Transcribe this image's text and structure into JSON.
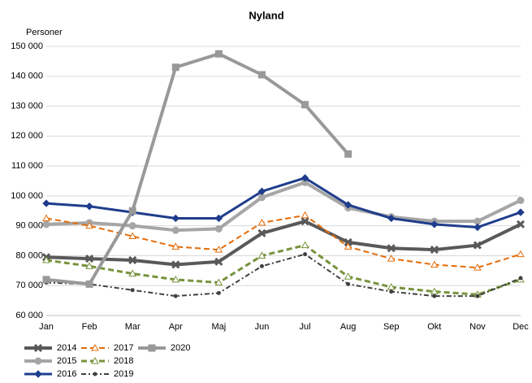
{
  "chart_data": {
    "type": "line",
    "title": "Nyland",
    "y_label": "Personer",
    "categories": [
      "Jan",
      "Feb",
      "Mar",
      "Apr",
      "Maj",
      "Jun",
      "Jul",
      "Aug",
      "Sep",
      "Okt",
      "Nov",
      "Dec"
    ],
    "ylim": [
      60000,
      150000
    ],
    "yticks": [
      {
        "value": 60000,
        "label": "60 000"
      },
      {
        "value": 70000,
        "label": "70 000"
      },
      {
        "value": 80000,
        "label": "80 000"
      },
      {
        "value": 90000,
        "label": "90 000"
      },
      {
        "value": 100000,
        "label": "100 000"
      },
      {
        "value": 110000,
        "label": "110 000"
      },
      {
        "value": 120000,
        "label": "120 000"
      },
      {
        "value": 130000,
        "label": "130 000"
      },
      {
        "value": 140000,
        "label": "140 000"
      },
      {
        "value": 150000,
        "label": "150 000"
      }
    ],
    "grid": true,
    "legend": "bottom-left",
    "series": [
      {
        "name": "2014",
        "color": "#595959",
        "width": 4,
        "dash": "",
        "marker": "x",
        "values": [
          79500,
          79000,
          78500,
          77000,
          78000,
          87500,
          91500,
          84500,
          82500,
          82000,
          83500,
          90500
        ]
      },
      {
        "name": "2015",
        "color": "#a6a6a6",
        "width": 4,
        "dash": "",
        "marker": "circle",
        "values": [
          90500,
          91000,
          90000,
          88500,
          89000,
          99500,
          104500,
          96000,
          93000,
          91500,
          91500,
          98500
        ]
      },
      {
        "name": "2016",
        "color": "#1f3d8c",
        "width": 3,
        "dash": "",
        "marker": "diamond",
        "values": [
          97500,
          96500,
          94500,
          92500,
          92500,
          101500,
          106000,
          97000,
          92500,
          90500,
          89500,
          94500
        ]
      },
      {
        "name": "2017",
        "color": "#e46c0a",
        "width": 2,
        "dash": "7,4",
        "marker": "triangle",
        "values": [
          92500,
          90000,
          86500,
          83000,
          82000,
          91000,
          93500,
          83000,
          79000,
          77000,
          76000,
          80500
        ]
      },
      {
        "name": "2018",
        "color": "#77933c",
        "width": 3,
        "dash": "7,4",
        "marker": "triangle",
        "values": [
          78500,
          76500,
          74000,
          72000,
          71000,
          80000,
          83500,
          73000,
          69500,
          68000,
          67000,
          72000
        ]
      },
      {
        "name": "2019",
        "color": "#404040",
        "width": 2,
        "dash": "6,3,2,3",
        "marker": "dot",
        "values": [
          71000,
          70500,
          68500,
          66500,
          67500,
          76500,
          80500,
          70500,
          68000,
          66500,
          66500,
          72500
        ]
      },
      {
        "name": "2020",
        "color": "#999999",
        "width": 4,
        "dash": "",
        "marker": "square",
        "values": [
          72000,
          70500,
          95000,
          143000,
          147500,
          140500,
          130500,
          114000,
          null,
          null,
          null,
          null
        ]
      }
    ]
  }
}
